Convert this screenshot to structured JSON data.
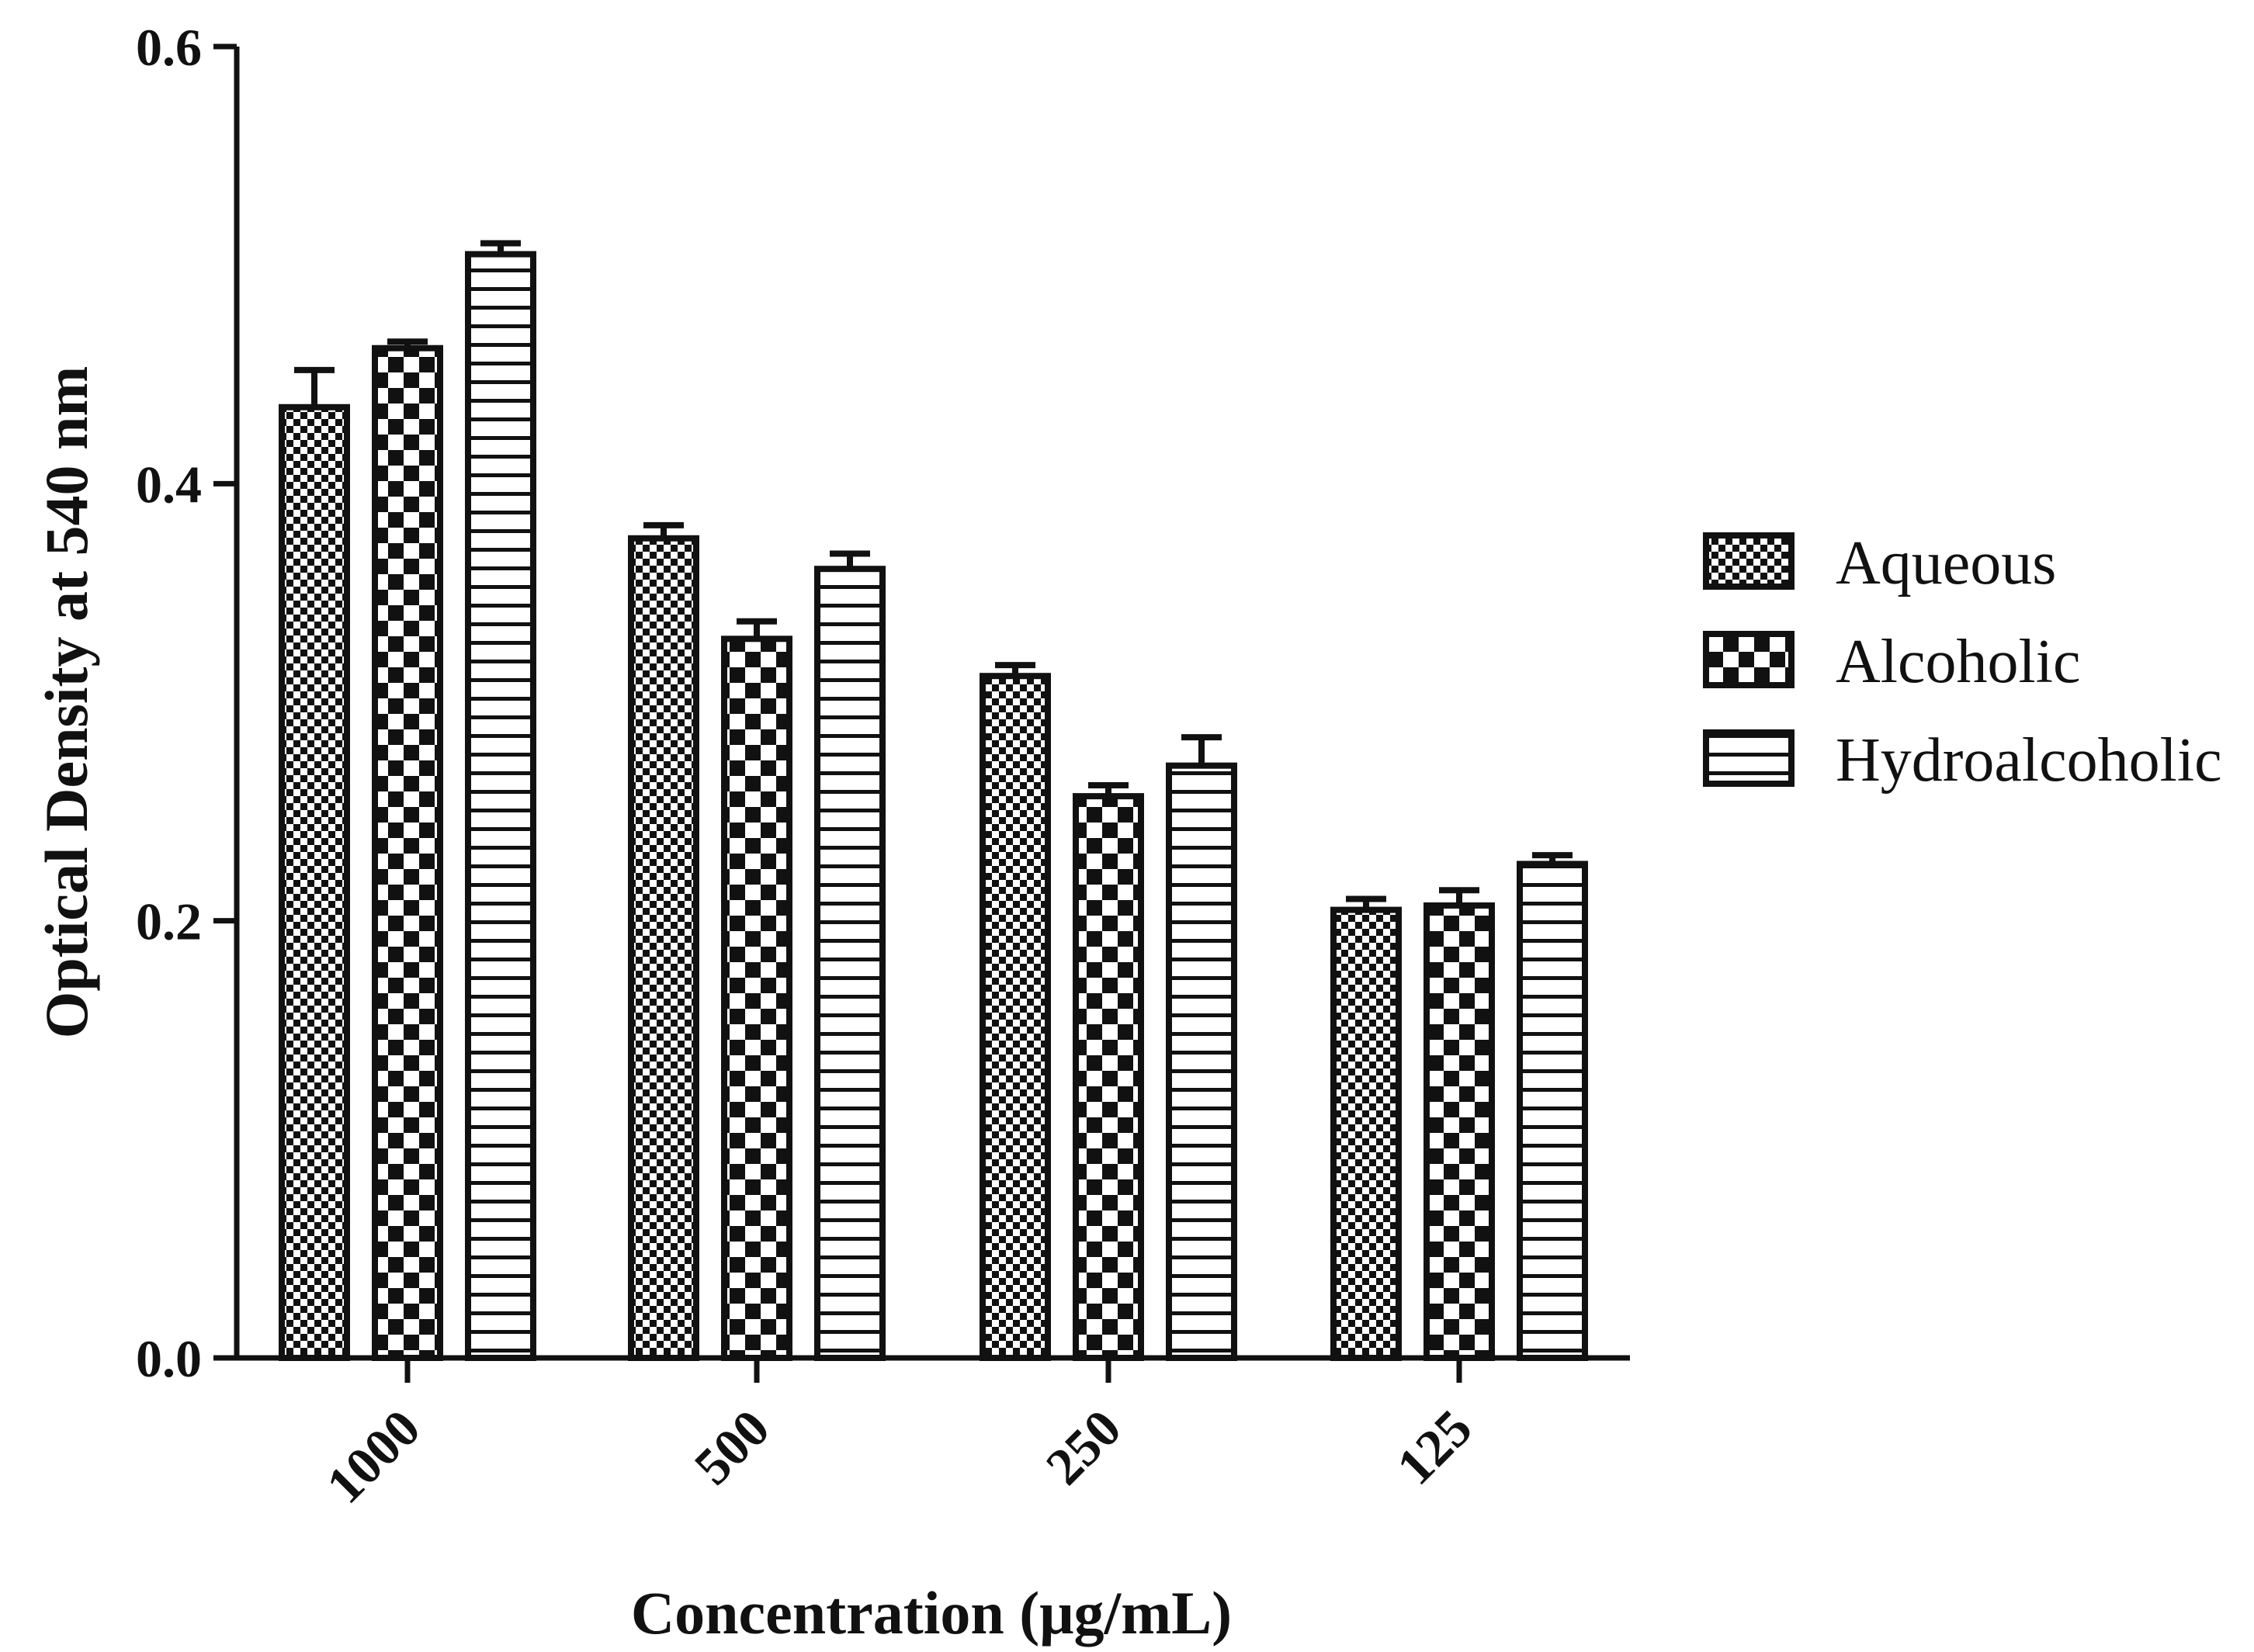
{
  "chart_data": {
    "type": "bar",
    "title": "",
    "xlabel": "Concentration (μg/mL)",
    "ylabel": "Optical Density at 540 nm",
    "categories": [
      "1000",
      "500",
      "250",
      "125"
    ],
    "ylim": [
      0.0,
      0.6
    ],
    "yticks": [
      "0.0",
      "0.2",
      "0.4",
      "0.6"
    ],
    "grid": false,
    "legend_position": "right",
    "series": [
      {
        "name": "Aqueous",
        "pattern": "fine-checker",
        "values": [
          0.435,
          0.375,
          0.312,
          0.205
        ],
        "errors": [
          0.017,
          0.006,
          0.005,
          0.005
        ]
      },
      {
        "name": "Alcoholic",
        "pattern": "coarse-checker",
        "values": [
          0.462,
          0.329,
          0.257,
          0.207
        ],
        "errors": [
          0.003,
          0.008,
          0.005,
          0.007
        ]
      },
      {
        "name": "Hydroalcoholic",
        "pattern": "horizontal-stripes",
        "values": [
          0.505,
          0.361,
          0.271,
          0.226
        ],
        "errors": [
          0.005,
          0.007,
          0.013,
          0.004
        ]
      }
    ]
  }
}
